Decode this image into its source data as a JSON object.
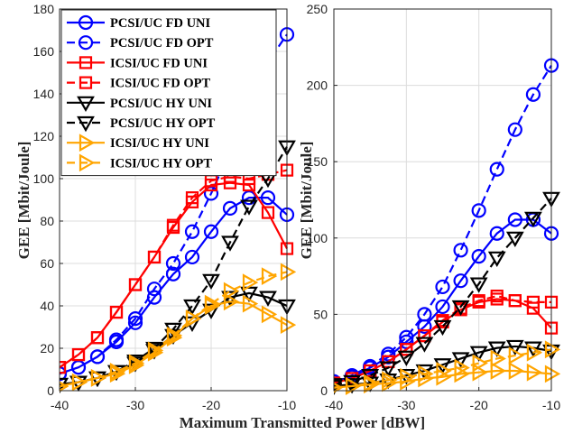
{
  "figure": {
    "xlabel": "Maximum Transmitted Power [dBW]"
  },
  "chart_data": [
    {
      "type": "line",
      "ylabel": "GEE [Mbit/Joule]",
      "xlim": [
        -40,
        -10
      ],
      "ylim": [
        0,
        180
      ],
      "xticks": [
        -40,
        -30,
        -20,
        -10
      ],
      "yticks": [
        0,
        20,
        40,
        60,
        80,
        100,
        120,
        140,
        160,
        180
      ],
      "grid": true,
      "legend": "top-left",
      "x": [
        -40,
        -37.5,
        -35,
        -32.5,
        -30,
        -27.5,
        -25,
        -22.5,
        -20,
        -17.5,
        -15,
        -12.5,
        -10
      ],
      "series": [
        {
          "name": "PCSI/UC FD UNI",
          "color": "#0000ff",
          "marker": "circle",
          "dash": "solid",
          "values": [
            8,
            11,
            16,
            23,
            32,
            44,
            55,
            63,
            75,
            86,
            91,
            91,
            83
          ]
        },
        {
          "name": "PCSI/UC FD OPT",
          "color": "#0000ff",
          "marker": "circle",
          "dash": "dashed",
          "values": [
            8,
            11,
            16,
            24,
            34,
            48,
            60,
            75,
            93,
            113,
            136,
            155,
            168
          ]
        },
        {
          "name": "ICSI/UC FD UNI",
          "color": "#ff0000",
          "marker": "square",
          "dash": "solid",
          "values": [
            11,
            17,
            25,
            37,
            50,
            63,
            77,
            89,
            97,
            98,
            97,
            84,
            67
          ]
        },
        {
          "name": "ICSI/UC FD OPT",
          "color": "#ff0000",
          "marker": "square",
          "dash": "dashed",
          "values": [
            11,
            17,
            25,
            37,
            50,
            63,
            78,
            91,
            99,
            101,
            100,
            102,
            104
          ]
        },
        {
          "name": "PCSI/UC HY UNI",
          "color": "#000000",
          "marker": "triangle-down",
          "dash": "solid",
          "values": [
            3,
            4,
            6,
            9,
            13,
            19,
            26,
            32,
            38,
            44,
            46,
            44,
            40
          ]
        },
        {
          "name": "PCSI/UC HY OPT",
          "color": "#000000",
          "marker": "triangle-down",
          "dash": "dashed",
          "values": [
            3,
            4,
            6,
            9,
            14,
            20,
            29,
            40,
            52,
            70,
            87,
            100,
            115
          ]
        },
        {
          "name": "ICSI/UC HY UNI",
          "color": "#ffa500",
          "marker": "triangle-right",
          "dash": "solid",
          "values": [
            2,
            4,
            6,
            8,
            12,
            18,
            25,
            34,
            40,
            42,
            41,
            36,
            31
          ]
        },
        {
          "name": "ICSI/UC HY OPT",
          "color": "#ffa500",
          "marker": "triangle-right",
          "dash": "dashed",
          "values": [
            2,
            4,
            6,
            9,
            13,
            19,
            26,
            34,
            41,
            47,
            51,
            54,
            56
          ]
        }
      ]
    },
    {
      "type": "line",
      "ylabel": "GEE [Mbit/Joule]",
      "xlim": [
        -40,
        -10
      ],
      "ylim": [
        0,
        250
      ],
      "xticks": [
        -40,
        -30,
        -20,
        -10
      ],
      "yticks": [
        0,
        50,
        100,
        150,
        200,
        250
      ],
      "grid": true,
      "x": [
        -40,
        -37.5,
        -35,
        -32.5,
        -30,
        -27.5,
        -25,
        -22.5,
        -20,
        -17.5,
        -15,
        -12.5,
        -10
      ],
      "series": [
        {
          "color": "#0000ff",
          "marker": "circle",
          "dash": "solid",
          "values": [
            6,
            9,
            15,
            22,
            32,
            42,
            55,
            72,
            88,
            103,
            112,
            112,
            103
          ]
        },
        {
          "color": "#0000ff",
          "marker": "circle",
          "dash": "dashed",
          "values": [
            6,
            10,
            16,
            24,
            35,
            50,
            68,
            92,
            118,
            145,
            171,
            194,
            213
          ]
        },
        {
          "color": "#ff0000",
          "marker": "square",
          "dash": "solid",
          "values": [
            5,
            8,
            13,
            19,
            27,
            36,
            45,
            53,
            58,
            60,
            59,
            54,
            41
          ]
        },
        {
          "color": "#ff0000",
          "marker": "square",
          "dash": "dashed",
          "values": [
            5,
            8,
            13,
            19,
            27,
            36,
            46,
            54,
            59,
            62,
            59,
            58,
            58
          ]
        },
        {
          "color": "#000000",
          "marker": "triangle-down",
          "dash": "solid",
          "values": [
            3,
            4,
            5,
            7,
            10,
            13,
            17,
            21,
            25,
            28,
            29,
            28,
            26
          ]
        },
        {
          "color": "#000000",
          "marker": "triangle-down",
          "dash": "dashed",
          "values": [
            4,
            6,
            10,
            15,
            22,
            31,
            42,
            55,
            70,
            87,
            100,
            113,
            126
          ]
        },
        {
          "color": "#ffa500",
          "marker": "triangle-right",
          "dash": "solid",
          "values": [
            2,
            3,
            4,
            5,
            6,
            8,
            9,
            11,
            12,
            13,
            13,
            12,
            11
          ]
        },
        {
          "color": "#ffa500",
          "marker": "triangle-right",
          "dash": "dashed",
          "values": [
            2,
            3,
            5,
            7,
            9,
            11,
            13,
            15,
            18,
            21,
            23,
            25,
            27
          ]
        }
      ]
    }
  ]
}
